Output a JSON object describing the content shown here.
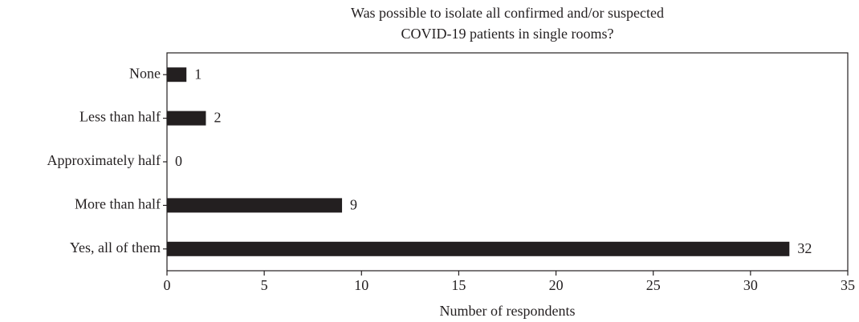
{
  "chart_data": {
    "type": "barh",
    "title": [
      "Was possible to isolate all confirmed and/or suspected",
      "COVID-19 patients in single rooms?"
    ],
    "x_label": "Number of respondents",
    "categories": [
      "None",
      "Less than half",
      "Approximately half",
      "More than half",
      "Yes, all of them"
    ],
    "values": [
      1,
      2,
      0,
      9,
      32
    ],
    "color": "#231f20",
    "xlim": [
      0,
      35
    ],
    "xticks": [
      0,
      5,
      10,
      15,
      20,
      25,
      30,
      35
    ],
    "value_labels_shown": true
  }
}
